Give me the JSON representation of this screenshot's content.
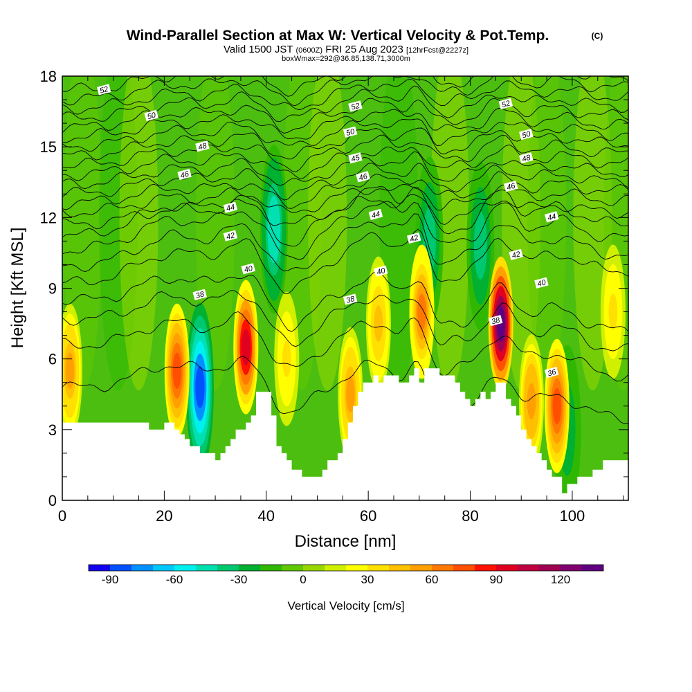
{
  "chart_data": {
    "type": "heatmap",
    "title_main": "Wind-Parallel Section at Max W: Vertical Velocity & Pot.Temp.",
    "title_mark": "(C)",
    "subtitle_a": "Valid 1500 JST",
    "subtitle_b": "(0600Z)",
    "subtitle_c": "FRI 25 Aug 2023",
    "subtitle_d": "[12hrFcst@2227z]",
    "subtitle2": "boxWmax=292@36.85,138.71,3000m",
    "xlabel": "Distance [nm]",
    "ylabel": "Height [Kft MSL]",
    "xlim": [
      0,
      111
    ],
    "ylim": [
      0,
      18
    ],
    "xticks": [
      0,
      20,
      40,
      60,
      80,
      100
    ],
    "yticks": [
      0,
      3,
      6,
      9,
      12,
      15,
      18
    ],
    "colorbar": {
      "label": "Vertical Velocity [cm/s]",
      "ticks": [
        "-90",
        "-60",
        "-30",
        "0",
        "30",
        "60",
        "90",
        "120"
      ],
      "range": [
        -100,
        140
      ],
      "colors": [
        "#1400f0",
        "#0050ff",
        "#0090ff",
        "#00c8ff",
        "#00f0f0",
        "#00e0b0",
        "#00c870",
        "#00b030",
        "#30b800",
        "#60c800",
        "#98d800",
        "#d0f000",
        "#ffff00",
        "#ffe000",
        "#ffc000",
        "#ffa000",
        "#ff7800",
        "#ff5000",
        "#ff1000",
        "#e00020",
        "#c00040",
        "#a00050",
        "#800070",
        "#600080"
      ]
    },
    "terrain_kft": [
      [
        0,
        3.3
      ],
      [
        2,
        3.3
      ],
      [
        4,
        3.3
      ],
      [
        6,
        3.3
      ],
      [
        8,
        3.3
      ],
      [
        10,
        3.3
      ],
      [
        12,
        3.3
      ],
      [
        14,
        3.3
      ],
      [
        16,
        3.3
      ],
      [
        17,
        3.0
      ],
      [
        19,
        3.0
      ],
      [
        20,
        3.3
      ],
      [
        21,
        3.3
      ],
      [
        22,
        3.0
      ],
      [
        23,
        2.8
      ],
      [
        24,
        2.6
      ],
      [
        25,
        2.3
      ],
      [
        26,
        2.3
      ],
      [
        27,
        2.0
      ],
      [
        29,
        2.0
      ],
      [
        30,
        1.7
      ],
      [
        31,
        2.0
      ],
      [
        32,
        2.3
      ],
      [
        33,
        2.6
      ],
      [
        34,
        3.0
      ],
      [
        36,
        3.3
      ],
      [
        37,
        3.6
      ],
      [
        38,
        4.6
      ],
      [
        40,
        4.6
      ],
      [
        41,
        3.6
      ],
      [
        42,
        2.3
      ],
      [
        43,
        2.0
      ],
      [
        44,
        1.7
      ],
      [
        45,
        1.3
      ],
      [
        47,
        1.0
      ],
      [
        50,
        1.0
      ],
      [
        51,
        1.3
      ],
      [
        52,
        1.7
      ],
      [
        54,
        2.0
      ],
      [
        55,
        2.6
      ],
      [
        56,
        3.3
      ],
      [
        57,
        4.0
      ],
      [
        58,
        4.6
      ],
      [
        59,
        5.0
      ],
      [
        61,
        5.3
      ],
      [
        62,
        5.0
      ],
      [
        63,
        5.3
      ],
      [
        65,
        5.3
      ],
      [
        66,
        5.0
      ],
      [
        68,
        5.3
      ],
      [
        69,
        5.6
      ],
      [
        70,
        5.0
      ],
      [
        71,
        5.6
      ],
      [
        73,
        5.6
      ],
      [
        74,
        5.3
      ],
      [
        76,
        5.3
      ],
      [
        77,
        5.0
      ],
      [
        78,
        4.6
      ],
      [
        79,
        4.3
      ],
      [
        80,
        4.0
      ],
      [
        81,
        4.3
      ],
      [
        82,
        4.6
      ],
      [
        83,
        4.3
      ],
      [
        84,
        4.6
      ],
      [
        85,
        5.0
      ],
      [
        86,
        5.0
      ],
      [
        87,
        4.3
      ],
      [
        88,
        4.0
      ],
      [
        89,
        3.6
      ],
      [
        90,
        3.0
      ],
      [
        91,
        2.6
      ],
      [
        92,
        2.3
      ],
      [
        93,
        2.0
      ],
      [
        94,
        1.7
      ],
      [
        95,
        1.3
      ],
      [
        96,
        1.0
      ],
      [
        97,
        1.0
      ],
      [
        98,
        0.3
      ],
      [
        99,
        0.7
      ],
      [
        100,
        0.7
      ],
      [
        101,
        1.0
      ],
      [
        103,
        1.0
      ],
      [
        104,
        1.3
      ],
      [
        106,
        1.7
      ],
      [
        108,
        1.7
      ],
      [
        111,
        1.7
      ]
    ],
    "updrafts": [
      {
        "x": 1.5,
        "h": 5.5,
        "w": 50
      },
      {
        "x": 22.5,
        "h": 5.5,
        "w": 75
      },
      {
        "x": 36,
        "h": 6.5,
        "w": 95
      },
      {
        "x": 44,
        "h": 6.0,
        "w": 30
      },
      {
        "x": 56.5,
        "h": 4.5,
        "w": 50
      },
      {
        "x": 62,
        "h": 7.5,
        "w": 45
      },
      {
        "x": 70.5,
        "h": 8.0,
        "w": 65
      },
      {
        "x": 86,
        "h": 7.5,
        "w": 135
      },
      {
        "x": 92,
        "h": 4.2,
        "w": 55
      },
      {
        "x": 97,
        "h": 4.0,
        "w": 70
      },
      {
        "x": 108,
        "h": 8.0,
        "w": 30
      }
    ],
    "downdrafts": [
      {
        "x": 27,
        "h": 4.8,
        "w": -85
      },
      {
        "x": 41.5,
        "h": 11.5,
        "w": -50
      },
      {
        "x": 72,
        "h": 11.0,
        "w": -40
      },
      {
        "x": 82,
        "h": 10.8,
        "w": -35
      },
      {
        "x": 99,
        "h": 3.0,
        "w": -30
      }
    ],
    "isentropes": {
      "start_kft": [
        4.8,
        6.6,
        7.7,
        8.5,
        9.2,
        9.9,
        10.6,
        11.2,
        11.7,
        12.2,
        12.6,
        13.0,
        13.4,
        13.8,
        14.2,
        14.6,
        15.0,
        15.4,
        15.8,
        16.2,
        16.6,
        17.0,
        17.4
      ],
      "labels": [
        {
          "text": "52",
          "x": 8.2,
          "y": 17.4
        },
        {
          "text": "50",
          "x": 17.5,
          "y": 16.3
        },
        {
          "text": "48",
          "x": 27.5,
          "y": 15.0
        },
        {
          "text": "46",
          "x": 24.0,
          "y": 13.8
        },
        {
          "text": "44",
          "x": 33.0,
          "y": 12.4
        },
        {
          "text": "42",
          "x": 33.0,
          "y": 11.2
        },
        {
          "text": "40",
          "x": 36.5,
          "y": 9.8
        },
        {
          "text": "38",
          "x": 27.0,
          "y": 8.7
        },
        {
          "text": "52",
          "x": 57.5,
          "y": 16.7
        },
        {
          "text": "50",
          "x": 56.5,
          "y": 15.6
        },
        {
          "text": "45",
          "x": 57.5,
          "y": 14.5
        },
        {
          "text": "46",
          "x": 59.0,
          "y": 13.7
        },
        {
          "text": "44",
          "x": 61.5,
          "y": 12.1
        },
        {
          "text": "42",
          "x": 69.0,
          "y": 11.1
        },
        {
          "text": "40",
          "x": 62.5,
          "y": 9.7
        },
        {
          "text": "38",
          "x": 56.5,
          "y": 8.5
        },
        {
          "text": "52",
          "x": 87.0,
          "y": 16.8
        },
        {
          "text": "50",
          "x": 91.0,
          "y": 15.5
        },
        {
          "text": "48",
          "x": 91.0,
          "y": 14.5
        },
        {
          "text": "46",
          "x": 88.0,
          "y": 13.3
        },
        {
          "text": "44",
          "x": 96.0,
          "y": 12.0
        },
        {
          "text": "42",
          "x": 89.0,
          "y": 10.4
        },
        {
          "text": "40",
          "x": 94.0,
          "y": 9.2
        },
        {
          "text": "38",
          "x": 85.0,
          "y": 7.6
        },
        {
          "text": "36",
          "x": 96.0,
          "y": 5.4
        }
      ]
    }
  }
}
